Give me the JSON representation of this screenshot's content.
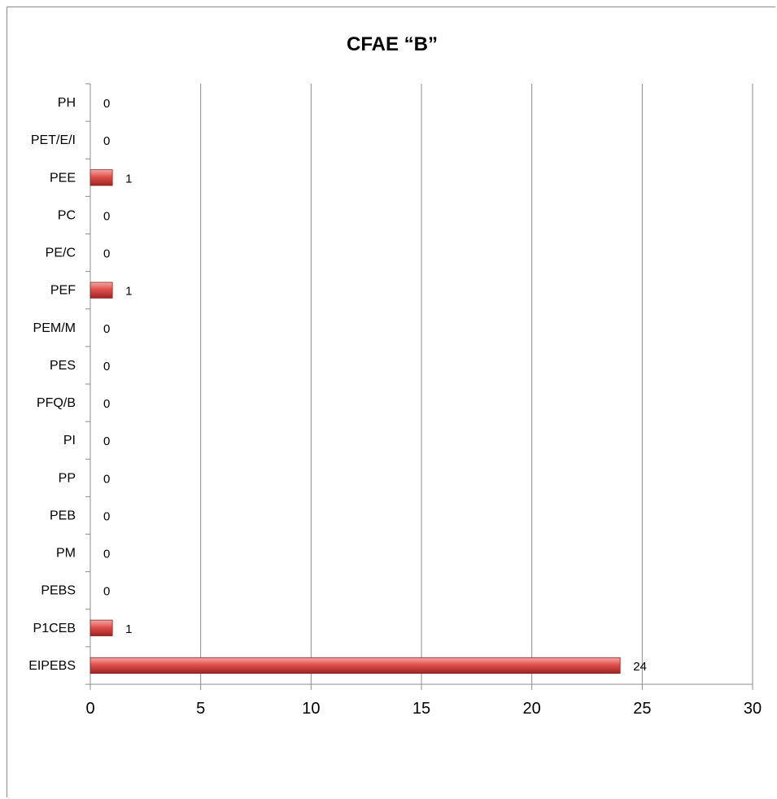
{
  "chart_data": {
    "type": "bar",
    "orientation": "horizontal",
    "title": "CFAE “B”",
    "xlabel": "",
    "ylabel": "",
    "categories": [
      "PH",
      "PET/E/I",
      "PEE",
      "PC",
      "PE/C",
      "PEF",
      "PEM/M",
      "PES",
      "PFQ/B",
      "PI",
      "PP",
      "PEB",
      "PM",
      "PEBS",
      "P1CEB",
      "EIPEBS"
    ],
    "values": [
      0,
      0,
      1,
      0,
      0,
      1,
      0,
      0,
      0,
      0,
      0,
      0,
      0,
      0,
      1,
      24
    ],
    "xlim": [
      0,
      30
    ],
    "xticks": [
      "0",
      "5",
      "10",
      "15",
      "20",
      "25",
      "30"
    ],
    "grid": "vertical",
    "legend": "none",
    "bar_color": "#e0504d",
    "data_labels": true
  }
}
